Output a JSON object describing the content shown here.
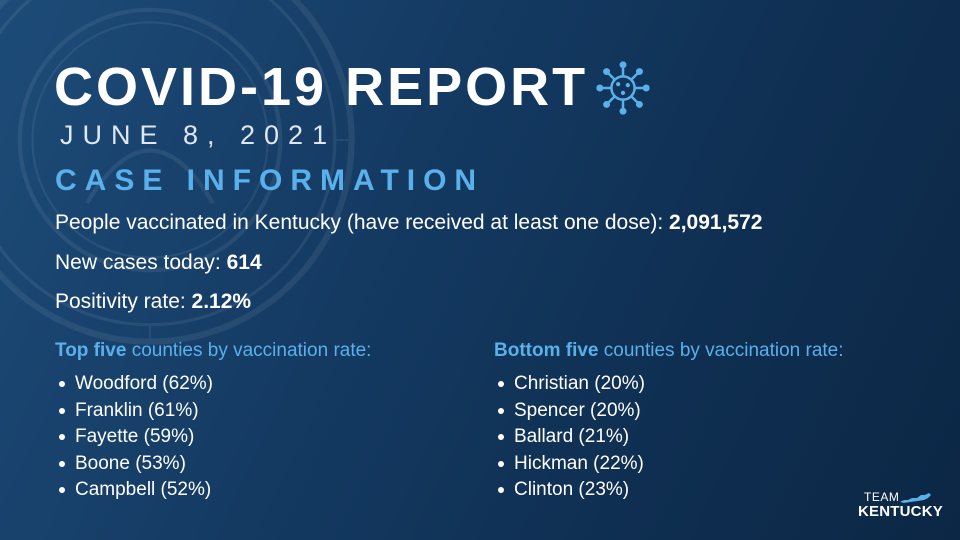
{
  "header": {
    "title": "COVID-19 REPORT",
    "date": "JUNE 8, 2021",
    "section": "CASE INFORMATION",
    "icon": "virus-icon"
  },
  "stats": [
    {
      "label": "People vaccinated in Kentucky (have received at least one dose): ",
      "value": "2,091,572"
    },
    {
      "label": "New cases today: ",
      "value": "614"
    },
    {
      "label": "Positivity rate: ",
      "value": "2.12%"
    }
  ],
  "top_five": {
    "heading_bold": "Top five",
    "heading_rest": " counties by vaccination rate:",
    "items": [
      "Woodford (62%)",
      "Franklin (61%)",
      "Fayette (59%)",
      "Boone (53%)",
      "Campbell (52%)"
    ]
  },
  "bottom_five": {
    "heading_bold": "Bottom five",
    "heading_rest": " counties by vaccination rate:",
    "items": [
      "Christian (20%)",
      "Spencer (20%)",
      "Ballard (21%)",
      "Hickman (22%)",
      "Clinton (23%)"
    ]
  },
  "logo": {
    "line1": "TEAM",
    "line2": "KENTUCKY"
  },
  "colors": {
    "accent": "#5ab0ea",
    "background": "#143a62",
    "text": "#ffffff"
  }
}
